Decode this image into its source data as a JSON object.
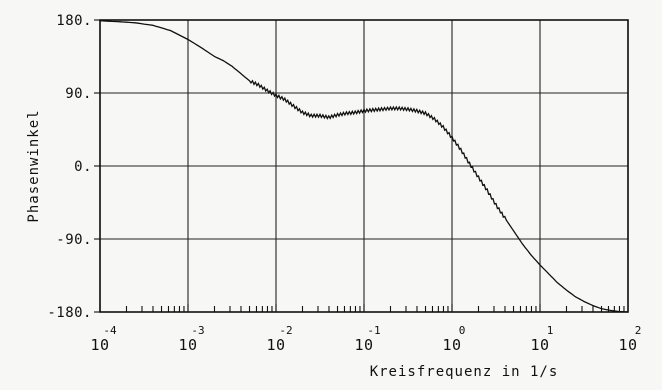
{
  "chart_data": {
    "type": "line",
    "title": "",
    "xlabel": "Kreisfrequenz in 1/s",
    "ylabel": "Phasenwinkel",
    "xscale": "log",
    "xlim": [
      0.0001,
      100
    ],
    "ylim": [
      -180,
      180
    ],
    "grid": true,
    "xticks": [
      {
        "base": "10",
        "exp": "-4",
        "value": 0.0001
      },
      {
        "base": "10",
        "exp": "-3",
        "value": 0.001
      },
      {
        "base": "10",
        "exp": "-2",
        "value": 0.01
      },
      {
        "base": "10",
        "exp": "-1",
        "value": 0.1
      },
      {
        "base": "10",
        "exp": "0",
        "value": 1
      },
      {
        "base": "10",
        "exp": "1",
        "value": 10
      },
      {
        "base": "10",
        "exp": "2",
        "value": 100
      }
    ],
    "yticks": [
      {
        "label": "180.",
        "value": 180
      },
      {
        "label": "90.",
        "value": 90
      },
      {
        "label": "0.",
        "value": 0
      },
      {
        "label": "-90.",
        "value": -90
      },
      {
        "label": "-180.",
        "value": -180
      }
    ],
    "series": [
      {
        "name": "",
        "x": [
          0.0001,
          0.000158,
          0.000251,
          0.000398,
          0.000631,
          0.001,
          0.00141,
          0.002,
          0.00251,
          0.00316,
          0.00398,
          0.005,
          0.00631,
          0.00794,
          0.01,
          0.0126,
          0.0158,
          0.02,
          0.0251,
          0.0316,
          0.0398,
          0.05,
          0.0631,
          0.0794,
          0.1,
          0.126,
          0.158,
          0.2,
          0.251,
          0.316,
          0.398,
          0.5,
          0.631,
          0.794,
          1,
          1.26,
          1.58,
          2,
          2.51,
          3.16,
          3.98,
          5.01,
          6.31,
          7.94,
          10,
          12.6,
          15.8,
          20,
          25.1,
          31.6,
          39.8,
          50.1,
          63.1,
          79.4,
          100
        ],
        "y": [
          179,
          178,
          176.5,
          173.5,
          167,
          156,
          146,
          135,
          130,
          123,
          114,
          105,
          100,
          93,
          87,
          82,
          74,
          66,
          62,
          62,
          60,
          63,
          65,
          66,
          68,
          69,
          70,
          71,
          71,
          70,
          68,
          65,
          58,
          48,
          35,
          20,
          3,
          -14,
          -30,
          -48,
          -64,
          -80,
          -96,
          -110,
          -122,
          -133,
          -144,
          -153,
          -161,
          -167,
          -172,
          -176,
          -178,
          -179.5,
          -180
        ]
      }
    ]
  }
}
